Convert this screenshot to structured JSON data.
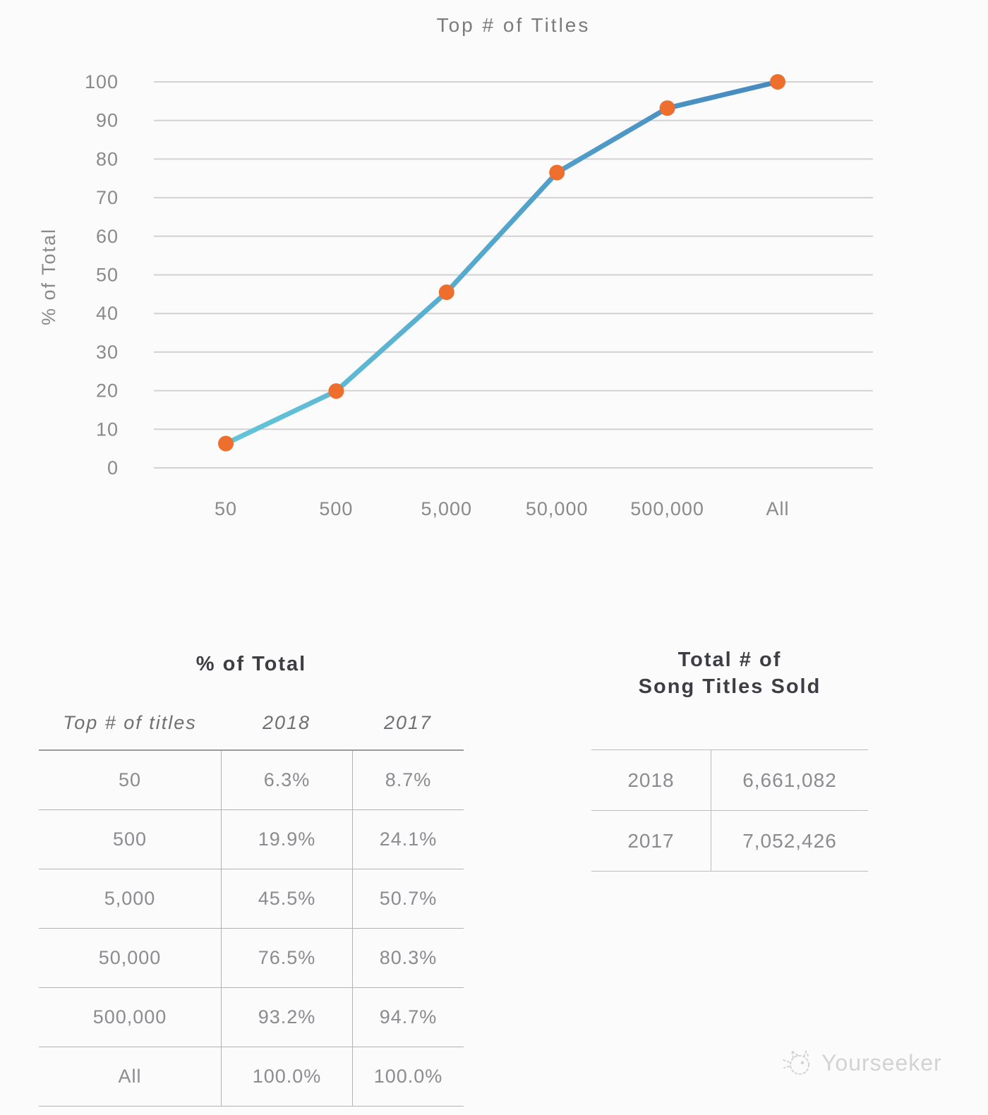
{
  "chart_data": {
    "type": "line",
    "title": "Top # of Titles",
    "xlabel": "",
    "ylabel": "% of Total",
    "categories": [
      "50",
      "500",
      "5,000",
      "50,000",
      "500,000",
      "All"
    ],
    "series": [
      {
        "name": "2018",
        "values": [
          6.3,
          19.9,
          45.5,
          76.5,
          93.2,
          100.0
        ]
      }
    ],
    "ylim": [
      0,
      100
    ],
    "yticks": [
      0,
      10,
      20,
      30,
      40,
      50,
      60,
      70,
      80,
      90,
      100
    ],
    "grid": true,
    "legend": "none",
    "grid_color": "#d2d2d2",
    "axis_text_color": "#8a8a8a",
    "line_color_start": "#63c5d8",
    "line_color_end": "#4689c0",
    "marker_color": "#ee6e2d"
  },
  "tables": {
    "percent_of_total": {
      "title": "% of Total",
      "columns": [
        "Top # of titles",
        "2018",
        "2017"
      ],
      "rows": [
        [
          "50",
          "6.3%",
          "8.7%"
        ],
        [
          "500",
          "19.9%",
          "24.1%"
        ],
        [
          "5,000",
          "45.5%",
          "50.7%"
        ],
        [
          "50,000",
          "76.5%",
          "80.3%"
        ],
        [
          "500,000",
          "93.2%",
          "94.7%"
        ],
        [
          "All",
          "100.0%",
          "100.0%"
        ]
      ]
    },
    "song_titles_sold": {
      "title_line1": "Total # of",
      "title_line2": "Song Titles Sold",
      "rows": [
        [
          "2018",
          "6,661,082"
        ],
        [
          "2017",
          "7,052,426"
        ]
      ]
    }
  },
  "watermark": {
    "label": "Yourseeker"
  }
}
